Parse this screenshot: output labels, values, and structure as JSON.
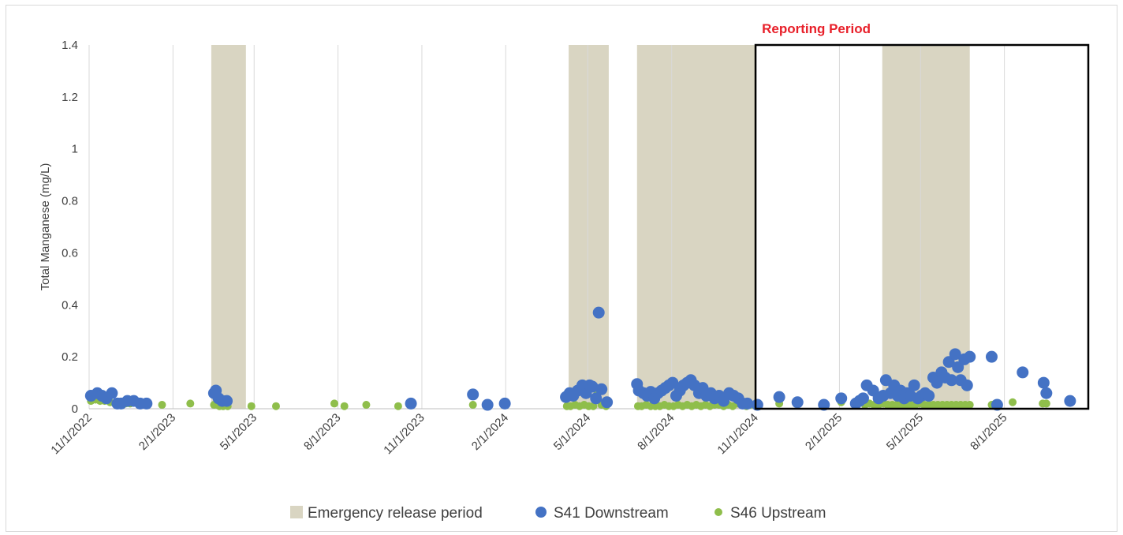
{
  "chart_data": {
    "type": "scatter",
    "title": "",
    "xlabel": "",
    "ylabel": "Total Manganese (mg/L)",
    "ylim": [
      0,
      1.4
    ],
    "yticks": [
      0,
      0.2,
      0.4,
      0.6,
      0.8,
      1,
      1.2,
      1.4
    ],
    "ytick_labels": [
      "0",
      "0.2",
      "0.4",
      "0.6",
      "0.8",
      "1",
      "1.2",
      "1.4"
    ],
    "xlim": [
      "2022-11-01",
      "2025-11-01"
    ],
    "xticks": [
      "2022-11-01",
      "2023-02-01",
      "2023-05-01",
      "2023-08-01",
      "2023-11-01",
      "2024-02-01",
      "2024-05-01",
      "2024-08-01",
      "2024-11-01",
      "2025-02-01",
      "2025-05-01",
      "2025-08-01"
    ],
    "xtick_labels": [
      "11/1/2022",
      "2/1/2023",
      "5/1/2023",
      "8/1/2023",
      "11/1/2023",
      "2/1/2024",
      "5/1/2024",
      "8/1/2024",
      "11/1/2024",
      "2/1/2025",
      "5/1/2025",
      "8/1/2025"
    ],
    "grid": "vertical",
    "legend_position": "bottom",
    "legend": [
      "Emergency release period",
      "S41 Downstream",
      "S46 Upstream"
    ],
    "emergency_release_periods": [
      {
        "start": "2023-03-15",
        "end": "2023-04-22"
      },
      {
        "start": "2024-04-10",
        "end": "2024-05-24"
      },
      {
        "start": "2024-06-24",
        "end": "2024-11-01"
      },
      {
        "start": "2025-03-20",
        "end": "2025-06-24"
      }
    ],
    "reporting_period": {
      "label": "Reporting Period",
      "start": "2024-11-01",
      "end": "2025-11-01",
      "ymax": 1.4
    },
    "colors": {
      "emergency": "#d9d5c2",
      "s41": "#4472c4",
      "s46": "#8fbe4b",
      "reporting_label": "#e8202a",
      "grid": "#d9d9d9"
    },
    "series": [
      {
        "name": "S41 Downstream",
        "x": [
          "2022-11-03",
          "2022-11-10",
          "2022-11-15",
          "2022-11-20",
          "2022-11-26",
          "2022-12-02",
          "2022-12-06",
          "2022-12-13",
          "2022-12-20",
          "2022-12-27",
          "2023-01-03",
          "2023-03-18",
          "2023-03-20",
          "2023-03-23",
          "2023-03-27",
          "2023-04-01",
          "2023-10-20",
          "2023-12-27",
          "2024-01-12",
          "2024-01-31",
          "2024-04-07",
          "2024-04-11",
          "2024-04-15",
          "2024-04-20",
          "2024-04-25",
          "2024-04-29",
          "2024-05-03",
          "2024-05-06",
          "2024-05-10",
          "2024-05-13",
          "2024-05-16",
          "2024-05-22",
          "2024-06-24",
          "2024-06-26",
          "2024-07-01",
          "2024-07-05",
          "2024-07-09",
          "2024-07-13",
          "2024-07-17",
          "2024-07-21",
          "2024-07-25",
          "2024-07-29",
          "2024-08-02",
          "2024-08-06",
          "2024-08-10",
          "2024-08-14",
          "2024-08-18",
          "2024-08-22",
          "2024-08-26",
          "2024-08-31",
          "2024-09-04",
          "2024-09-08",
          "2024-09-13",
          "2024-09-17",
          "2024-09-22",
          "2024-09-27",
          "2024-10-03",
          "2024-10-08",
          "2024-10-13",
          "2024-10-18",
          "2024-10-23",
          "2024-11-03",
          "2024-11-27",
          "2024-12-17",
          "2025-01-15",
          "2025-02-03",
          "2025-02-19",
          "2025-02-23",
          "2025-02-27",
          "2025-03-03",
          "2025-03-10",
          "2025-03-16",
          "2025-03-21",
          "2025-03-24",
          "2025-03-29",
          "2025-04-02",
          "2025-04-06",
          "2025-04-09",
          "2025-04-13",
          "2025-04-16",
          "2025-04-20",
          "2025-04-24",
          "2025-04-28",
          "2025-05-02",
          "2025-05-06",
          "2025-05-10",
          "2025-05-15",
          "2025-05-19",
          "2025-05-24",
          "2025-05-28",
          "2025-06-01",
          "2025-06-04",
          "2025-06-08",
          "2025-06-11",
          "2025-06-14",
          "2025-06-18",
          "2025-06-21",
          "2025-06-24",
          "2025-07-18",
          "2025-07-24",
          "2025-08-21",
          "2025-09-13",
          "2025-09-16",
          "2025-10-12"
        ],
        "y": [
          0.05,
          0.06,
          0.05,
          0.04,
          0.06,
          0.02,
          0.02,
          0.03,
          0.03,
          0.02,
          0.02,
          0.06,
          0.07,
          0.04,
          0.03,
          0.03,
          0.02,
          0.055,
          0.015,
          0.02,
          0.045,
          0.06,
          0.05,
          0.07,
          0.09,
          0.06,
          0.09,
          0.085,
          0.04,
          0.37,
          0.075,
          0.025,
          0.095,
          0.07,
          0.06,
          0.05,
          0.065,
          0.04,
          0.06,
          0.07,
          0.08,
          0.09,
          0.1,
          0.05,
          0.07,
          0.09,
          0.1,
          0.11,
          0.09,
          0.06,
          0.08,
          0.05,
          0.06,
          0.04,
          0.05,
          0.03,
          0.06,
          0.05,
          0.04,
          0.02,
          0.02,
          0.015,
          0.045,
          0.025,
          0.015,
          0.04,
          0.02,
          0.03,
          0.04,
          0.09,
          0.07,
          0.04,
          0.05,
          0.11,
          0.06,
          0.09,
          0.05,
          0.07,
          0.04,
          0.06,
          0.05,
          0.09,
          0.04,
          0.05,
          0.06,
          0.05,
          0.12,
          0.1,
          0.14,
          0.12,
          0.18,
          0.11,
          0.21,
          0.16,
          0.11,
          0.19,
          0.09,
          0.2,
          0.2,
          0.015,
          0.14,
          0.1,
          0.06,
          0.03
        ]
      },
      {
        "name": "S46 Upstream",
        "x": [
          "2022-11-03",
          "2022-11-08",
          "2022-11-13",
          "2022-11-18",
          "2022-11-24",
          "2022-11-30",
          "2022-12-05",
          "2022-12-11",
          "2022-12-16",
          "2022-12-21",
          "2022-12-26",
          "2023-01-03",
          "2023-01-20",
          "2023-02-20",
          "2023-03-18",
          "2023-03-21",
          "2023-03-24",
          "2023-03-28",
          "2023-04-02",
          "2023-04-28",
          "2023-05-25",
          "2023-07-28",
          "2023-08-08",
          "2023-09-01",
          "2023-10-06",
          "2023-10-20",
          "2023-12-27",
          "2024-01-13",
          "2024-01-31",
          "2024-04-08",
          "2024-04-12",
          "2024-04-17",
          "2024-04-22",
          "2024-04-27",
          "2024-05-02",
          "2024-05-07",
          "2024-05-11",
          "2024-05-16",
          "2024-05-21",
          "2024-06-25",
          "2024-06-29",
          "2024-07-04",
          "2024-07-09",
          "2024-07-14",
          "2024-07-19",
          "2024-07-24",
          "2024-07-29",
          "2024-08-03",
          "2024-08-08",
          "2024-08-13",
          "2024-08-18",
          "2024-08-23",
          "2024-08-28",
          "2024-09-02",
          "2024-09-07",
          "2024-09-12",
          "2024-09-17",
          "2024-09-22",
          "2024-09-27",
          "2024-10-02",
          "2024-10-07",
          "2024-10-12",
          "2024-10-17",
          "2024-10-22",
          "2024-10-27",
          "2024-11-01",
          "2024-11-27",
          "2025-01-15",
          "2025-02-03",
          "2025-02-19",
          "2025-02-24",
          "2025-03-01",
          "2025-03-06",
          "2025-03-11",
          "2025-03-16",
          "2025-03-21",
          "2025-03-26",
          "2025-03-31",
          "2025-04-05",
          "2025-04-10",
          "2025-04-15",
          "2025-04-20",
          "2025-04-25",
          "2025-04-30",
          "2025-05-05",
          "2025-05-10",
          "2025-05-15",
          "2025-05-20",
          "2025-05-25",
          "2025-05-30",
          "2025-06-04",
          "2025-06-09",
          "2025-06-14",
          "2025-06-19",
          "2025-06-24",
          "2025-07-18",
          "2025-07-22",
          "2025-08-10",
          "2025-09-12",
          "2025-09-16",
          "2025-10-12"
        ],
        "y": [
          0.03,
          0.035,
          0.03,
          0.03,
          0.025,
          0.02,
          0.015,
          0.02,
          0.02,
          0.025,
          0.02,
          0.02,
          0.015,
          0.02,
          0.015,
          0.015,
          0.01,
          0.01,
          0.01,
          0.01,
          0.01,
          0.02,
          0.01,
          0.015,
          0.01,
          0.015,
          0.015,
          0.015,
          0.015,
          0.01,
          0.01,
          0.015,
          0.01,
          0.015,
          0.01,
          0.01,
          0.07,
          0.015,
          0.01,
          0.01,
          0.01,
          0.015,
          0.01,
          0.01,
          0.01,
          0.015,
          0.01,
          0.01,
          0.015,
          0.01,
          0.015,
          0.01,
          0.015,
          0.01,
          0.015,
          0.01,
          0.015,
          0.015,
          0.01,
          0.015,
          0.01,
          0.02,
          0.015,
          0.01,
          0.015,
          0.015,
          0.02,
          0.015,
          0.025,
          0.02,
          0.025,
          0.015,
          0.02,
          0.015,
          0.015,
          0.02,
          0.015,
          0.015,
          0.015,
          0.015,
          0.015,
          0.015,
          0.015,
          0.02,
          0.015,
          0.015,
          0.015,
          0.015,
          0.015,
          0.015,
          0.015,
          0.015,
          0.015,
          0.015,
          0.015,
          0.015,
          0.02,
          0.025,
          0.02,
          0.02,
          0.035
        ]
      }
    ]
  }
}
